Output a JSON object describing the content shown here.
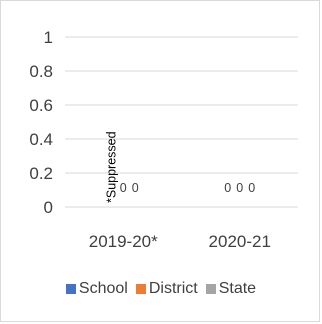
{
  "chart_data": {
    "type": "bar",
    "categories": [
      "2019-20*",
      "2020-21"
    ],
    "series": [
      {
        "name": "School",
        "color": "#4472c4",
        "values": [
          0,
          0
        ],
        "labels": [
          "*Suppressed",
          "0"
        ]
      },
      {
        "name": "District",
        "color": "#ed7d31",
        "values": [
          0,
          0
        ],
        "labels": [
          "0",
          "0"
        ]
      },
      {
        "name": "State",
        "color": "#a5a5a5",
        "values": [
          0,
          0
        ],
        "labels": [
          "0",
          "0"
        ]
      }
    ],
    "y_ticks": [
      "0",
      "0.2",
      "0.4",
      "0.6",
      "0.8",
      "1"
    ],
    "ylim": [
      0,
      1
    ],
    "grid": true,
    "legend_position": "bottom"
  }
}
